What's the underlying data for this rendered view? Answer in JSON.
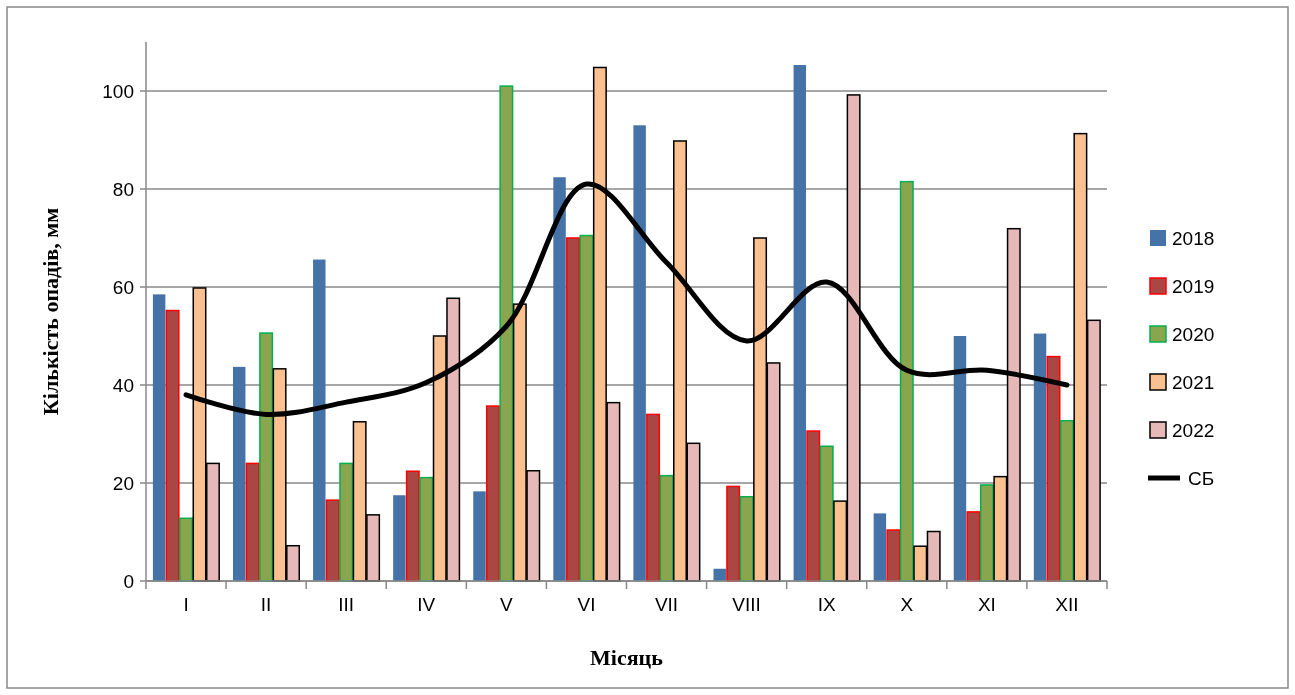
{
  "chart_data": {
    "type": "bar",
    "xlabel": "Місяць",
    "ylabel": "Кількість опадів, мм",
    "categories": [
      "I",
      "II",
      "III",
      "IV",
      "V",
      "VI",
      "VII",
      "VIII",
      "IX",
      "X",
      "XI",
      "XII"
    ],
    "series": [
      {
        "name": "2018",
        "color": "#4573a7",
        "values": [
          58.5,
          43.7,
          65.6,
          17.5,
          18.3,
          82.4,
          93,
          2.5,
          105.3,
          13.8,
          50,
          50.5
        ]
      },
      {
        "name": "2019",
        "color": "#aa4643",
        "values": [
          55.2,
          24,
          16.5,
          22.4,
          35.7,
          70,
          34,
          19.3,
          30.6,
          10.4,
          14.1,
          45.8
        ]
      },
      {
        "name": "2020",
        "color": "#89a54e",
        "values": [
          12.8,
          50.6,
          24,
          21.1,
          101,
          70.5,
          21.5,
          17.2,
          27.5,
          81.5,
          19.6,
          32.7
        ]
      },
      {
        "name": "2021",
        "color": "#fac090",
        "values": [
          59.8,
          43.3,
          32.5,
          50,
          56.5,
          104.8,
          89.8,
          70,
          16.3,
          7.1,
          21.3,
          91.3
        ]
      },
      {
        "name": "2022",
        "color": "#e6b9b8",
        "values": [
          24,
          7.2,
          13.5,
          57.7,
          22.5,
          36.4,
          28.1,
          44.5,
          99.2,
          10.1,
          71.9,
          53.2
        ]
      },
      {
        "name": "СБ",
        "type": "line",
        "color": "#000000",
        "values": [
          38,
          34,
          36.5,
          40.5,
          52,
          81,
          65,
          49,
          61,
          43,
          43,
          40
        ]
      }
    ],
    "ylim": [
      0,
      110
    ],
    "yticks": [
      0,
      20,
      40,
      60,
      80,
      100
    ],
    "grid": "y",
    "legend": "right"
  }
}
